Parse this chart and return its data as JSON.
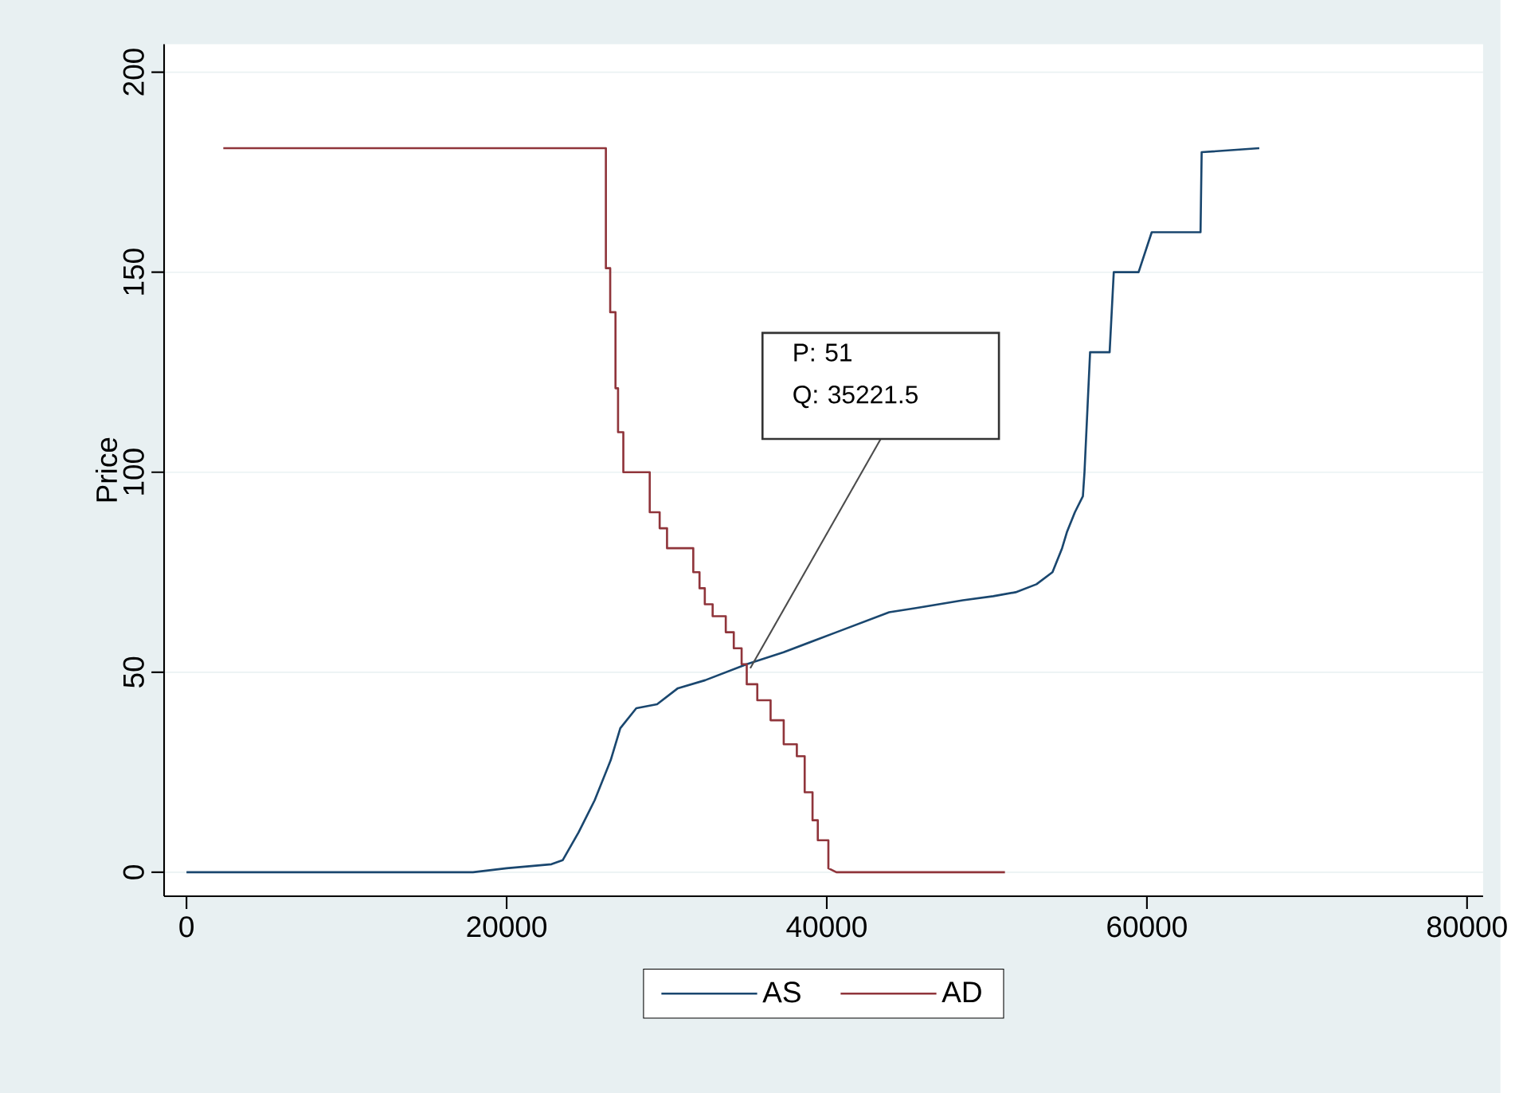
{
  "chart_data": {
    "type": "line",
    "ylabel": "Price",
    "series": [
      {
        "name": "AS",
        "color": "#1a476f",
        "x": [
          0,
          17900,
          20000,
          22800,
          23500,
          24500,
          25500,
          26500,
          27100,
          28100,
          29400,
          30700,
          32400,
          33700,
          35000,
          37300,
          40600,
          43900,
          45500,
          48500,
          50400,
          51800,
          53100,
          54100,
          54700,
          55000,
          55500,
          56000,
          56100,
          56450,
          57670,
          57930,
          59480,
          60300,
          63350,
          63420,
          67020
        ],
        "values": [
          0,
          0,
          1,
          2,
          3,
          10,
          18,
          28,
          36,
          41,
          42,
          46,
          48,
          50,
          52,
          55,
          60,
          65,
          66,
          68,
          69,
          70,
          72,
          75,
          81,
          85,
          90,
          94,
          100,
          130,
          130,
          150,
          150,
          160,
          160,
          180,
          181
        ]
      },
      {
        "name": "AD",
        "color": "#90353b",
        "x": [
          2300,
          26200,
          26200,
          26470,
          26470,
          26800,
          26800,
          26960,
          26960,
          27290,
          27290,
          28940,
          28940,
          29560,
          29560,
          30020,
          30020,
          31660,
          31660,
          32050,
          32050,
          32380,
          32380,
          32870,
          32870,
          33690,
          33690,
          34190,
          34190,
          34680,
          34680,
          35000,
          35000,
          35660,
          35660,
          36490,
          36490,
          37310,
          37310,
          38130,
          38130,
          38620,
          38620,
          39110,
          39110,
          39440,
          39440,
          40100,
          40100,
          40600,
          51130
        ],
        "values": [
          181,
          181,
          151,
          151,
          140,
          140,
          121,
          121,
          110,
          110,
          100,
          100,
          90,
          90,
          86,
          86,
          81,
          81,
          75,
          75,
          71,
          71,
          67,
          67,
          64,
          64,
          60,
          60,
          56,
          56,
          52,
          52,
          47,
          47,
          43,
          43,
          38,
          38,
          32,
          32,
          29,
          29,
          20,
          20,
          13,
          13,
          8,
          8,
          1,
          0,
          0
        ]
      }
    ],
    "xlim": [
      -1400,
      81000
    ],
    "ylim": [
      -6,
      207
    ],
    "xticks": [
      0,
      20000,
      40000,
      60000,
      80000
    ],
    "yticks": [
      0,
      50,
      100,
      150,
      200
    ],
    "grid": "y",
    "legend": "bottom",
    "annotations": [
      "P: 51",
      {
        "text": "Q: 35221.5",
        "x": 35221.5,
        "y": 51
      }
    ]
  }
}
